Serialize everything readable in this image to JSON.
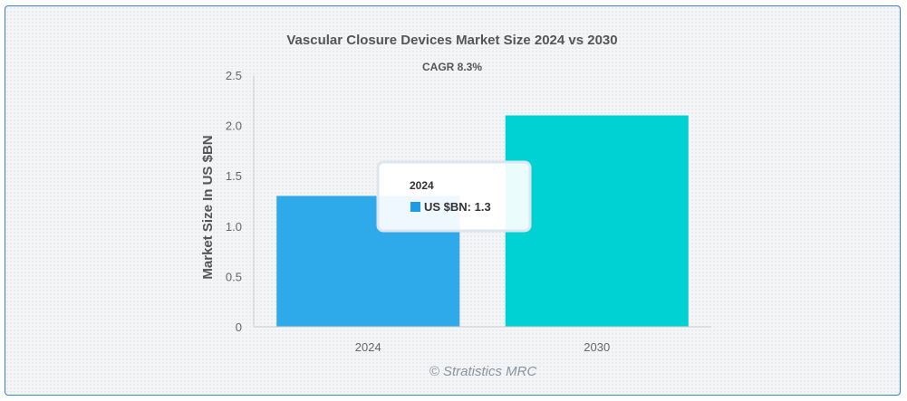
{
  "chart_data": {
    "type": "bar",
    "title": "Vascular Closure Devices Market Size 2024 vs 2030",
    "subtitle": "CAGR 8.3%",
    "categories": [
      "2024",
      "2030"
    ],
    "series": [
      {
        "name": "US $BN",
        "values": [
          1.3,
          2.1
        ],
        "colors": [
          "#2eaaeb",
          "#00d2d3"
        ]
      }
    ],
    "ylabel": "Market Size In US $BN",
    "ylim": [
      0,
      2.5
    ],
    "yticks": [
      "0",
      "0.5",
      "1.0",
      "1.5",
      "2.0",
      "2.5"
    ],
    "grid": false,
    "credit": "© Stratistics MRC",
    "tooltip": {
      "title": "2024",
      "series_name": "US $BN",
      "value": "1.3",
      "text": "US $BN: 1.3",
      "marker_color": "#1e9be6"
    }
  },
  "colors": {
    "border": "#3a7fc1",
    "axis": "#cccccc"
  }
}
